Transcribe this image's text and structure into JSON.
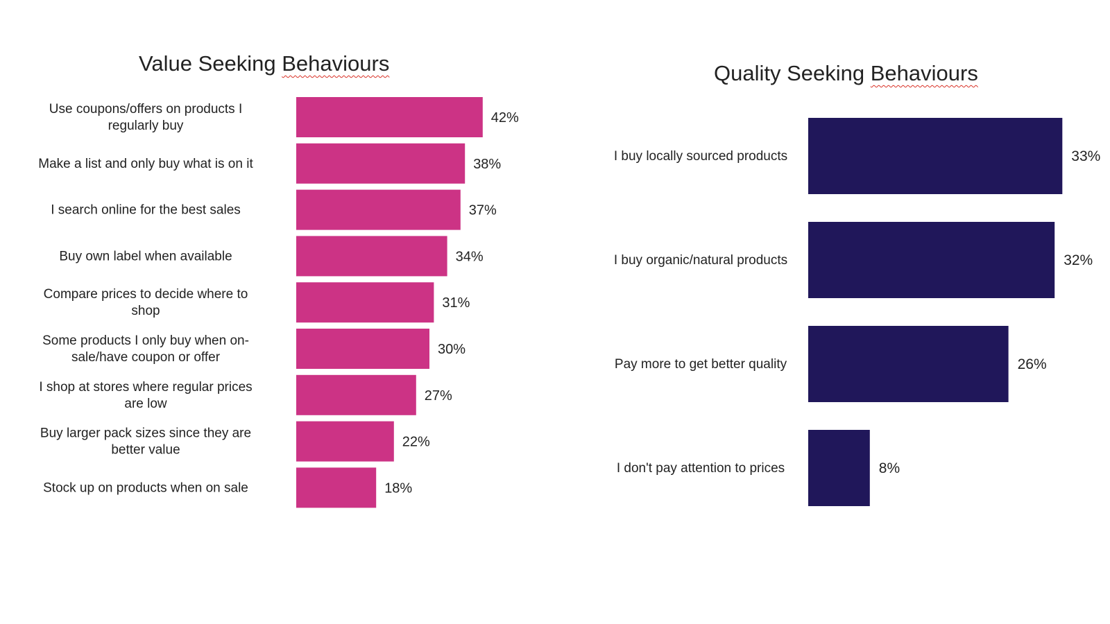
{
  "chart_data": [
    {
      "type": "bar",
      "orientation": "horizontal",
      "title_main": "Value Seeking ",
      "title_underlined": "Behaviours",
      "categories": [
        "Use coupons/offers on products I regularly buy",
        "Make a list and only buy what is on it",
        "I search online for the best sales",
        "Buy own label when available",
        "Compare prices to decide where to shop",
        "Some products I only buy when on-sale/have coupon or offer",
        "I shop at stores where regular prices are low",
        "Buy larger pack sizes since they are better value",
        "Stock up on products when on sale"
      ],
      "category_lines": [
        [
          "Use coupons/offers on products I",
          "regularly buy"
        ],
        [
          "Make a list and only buy what is on it"
        ],
        [
          "I search online for the best sales"
        ],
        [
          "Buy own label when available"
        ],
        [
          "Compare prices to decide where to",
          "shop"
        ],
        [
          "Some products I only buy when on-",
          "sale/have coupon or offer"
        ],
        [
          "I shop at stores where regular prices",
          "are low"
        ],
        [
          "Buy larger pack sizes since they are",
          "better value"
        ],
        [
          "Stock up on products when on sale"
        ]
      ],
      "values": [
        42,
        38,
        37,
        34,
        31,
        30,
        27,
        22,
        18
      ],
      "value_labels": [
        "42%",
        "38%",
        "37%",
        "34%",
        "31%",
        "30%",
        "27%",
        "22%",
        "18%"
      ],
      "color": "#cc3385",
      "grid": false,
      "legend": "none"
    },
    {
      "type": "bar",
      "orientation": "horizontal",
      "title_main": "Quality Seeking ",
      "title_underlined": "Behaviours",
      "categories": [
        "I buy locally sourced products",
        "I buy organic/natural products",
        "Pay more to get better quality",
        "I don't pay attention to prices"
      ],
      "category_lines": [
        [
          "I buy locally sourced products"
        ],
        [
          "I buy organic/natural products"
        ],
        [
          "Pay more to get better quality"
        ],
        [
          "I don't pay attention to prices"
        ]
      ],
      "values": [
        33,
        32,
        26,
        8
      ],
      "value_labels": [
        "33%",
        "32%",
        "26%",
        "8%"
      ],
      "color": "#20175a",
      "grid": false,
      "legend": "none"
    }
  ]
}
